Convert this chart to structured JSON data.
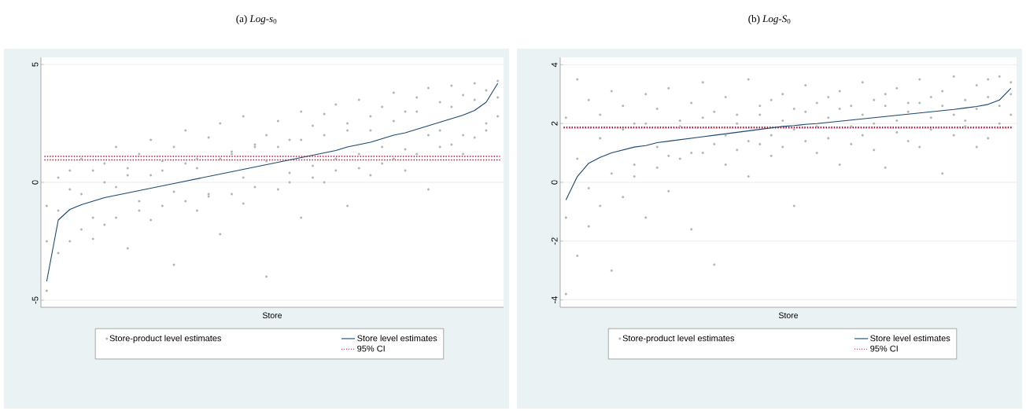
{
  "chart_data": [
    {
      "type": "scatter",
      "title": "(a) *Log-s*$_{0}$",
      "xlabel": "Store",
      "categories": [
        null,
        null,
        null,
        null,
        null,
        null,
        null,
        null,
        null,
        null,
        null,
        null,
        null,
        null,
        null,
        null,
        null,
        null,
        null,
        null,
        null,
        null,
        null,
        null,
        null,
        null,
        null,
        null,
        null,
        null,
        null,
        null,
        null,
        null,
        null,
        null,
        null,
        null,
        null,
        null
      ],
      "series": [
        {
          "name": "Store-product level estimates",
          "color": "#a9b8b0",
          "values": [
            -2.5,
            0.2,
            -0.3,
            1.0,
            0.5,
            0.8,
            1.5,
            0.3,
            1.2,
            1.8,
            0.9,
            1.5,
            2.2,
            0.6,
            1.9,
            2.5,
            1.2,
            2.8,
            1.5,
            2.0,
            2.6,
            1.8,
            3.0,
            2.4,
            2.9,
            3.3,
            2.2,
            3.5,
            2.8,
            3.2,
            3.8,
            3.0,
            3.6,
            4.0,
            3.4,
            4.1,
            3.7,
            4.2,
            3.9,
            4.3
          ]
        },
        {
          "color": "#a9b8b0",
          "values": [
            -4.6,
            -3.0,
            -2.5,
            -2.0,
            -2.4,
            -1.8,
            -1.5,
            -2.8,
            -1.2,
            -1.6,
            -1.0,
            -3.5,
            -0.8,
            -1.2,
            -0.6,
            -2.2,
            -0.5,
            -0.9,
            -0.2,
            -4.0,
            -0.3,
            0.0,
            -1.5,
            0.2,
            0.0,
            0.5,
            -1.0,
            0.6,
            0.3,
            0.8,
            1.0,
            0.5,
            1.2,
            -0.3,
            1.5,
            1.6,
            1.2,
            1.9,
            2.2,
            2.8
          ]
        },
        {
          "color": "#a9b8b0",
          "values": [
            -1.0,
            -1.2,
            0.5,
            -0.5,
            -1.5,
            0.0,
            -0.2,
            0.6,
            -0.8,
            0.3,
            0.5,
            -0.4,
            0.8,
            1.0,
            -0.5,
            1.0,
            1.3,
            0.2,
            1.6,
            0.9,
            1.5,
            0.4,
            1.8,
            0.7,
            2.0,
            1.0,
            2.5,
            1.2,
            2.2,
            1.5,
            2.6,
            1.4,
            3.0,
            2.0,
            2.2,
            3.2,
            2.0,
            3.5,
            2.5,
            3.6
          ]
        },
        {
          "name": "Store level estimates",
          "type": "line",
          "color": "#1a476f",
          "values": [
            -4.2,
            -1.6,
            -1.15,
            -0.95,
            -0.8,
            -0.65,
            -0.55,
            -0.45,
            -0.35,
            -0.25,
            -0.15,
            -0.05,
            0.05,
            0.15,
            0.25,
            0.35,
            0.45,
            0.55,
            0.65,
            0.75,
            0.85,
            0.95,
            1.05,
            1.15,
            1.25,
            1.35,
            1.5,
            1.6,
            1.7,
            1.85,
            2.0,
            2.1,
            2.25,
            2.4,
            2.55,
            2.7,
            2.85,
            3.05,
            3.4,
            4.2
          ]
        }
      ],
      "ref_lines": [
        {
          "axis": "y",
          "value": 1.1,
          "label": "95% CI",
          "color": "#c10534",
          "line_style": "dotted"
        },
        {
          "axis": "y",
          "value": 0.95,
          "label": null,
          "color": "#c10534",
          "line_style": "dotted"
        }
      ],
      "ylim": [
        -5.3,
        5.3
      ],
      "yticks": [
        -5,
        0,
        5
      ],
      "grid": "y",
      "legend": "bottom",
      "tick_labels": "y"
    },
    {
      "type": "scatter",
      "title": "(b) *Log-S*$_{0}$",
      "xlabel": "Store",
      "categories": [
        null,
        null,
        null,
        null,
        null,
        null,
        null,
        null,
        null,
        null,
        null,
        null,
        null,
        null,
        null,
        null,
        null,
        null,
        null,
        null,
        null,
        null,
        null,
        null,
        null,
        null,
        null,
        null,
        null,
        null,
        null,
        null,
        null,
        null,
        null,
        null,
        null,
        null,
        null,
        null
      ],
      "series": [
        {
          "name": "Store-product level estimates",
          "color": "#a9b8b0",
          "values": [
            2.2,
            3.5,
            2.8,
            2.3,
            3.1,
            2.6,
            2.0,
            3.0,
            2.5,
            3.2,
            2.1,
            2.7,
            3.4,
            2.4,
            2.9,
            2.3,
            3.5,
            2.6,
            2.8,
            3.0,
            2.5,
            3.3,
            2.7,
            2.9,
            3.1,
            2.6,
            3.4,
            2.8,
            3.0,
            3.2,
            2.7,
            3.5,
            2.9,
            3.1,
            3.6,
            2.8,
            3.3,
            3.5,
            3.6,
            3.4
          ]
        },
        {
          "color": "#a9b8b0",
          "values": [
            -3.8,
            -2.5,
            -1.5,
            -0.8,
            -3.0,
            -0.5,
            0.2,
            -1.2,
            0.5,
            -0.3,
            0.8,
            -1.6,
            1.0,
            -2.8,
            0.6,
            1.1,
            0.2,
            1.3,
            0.9,
            1.2,
            -0.8,
            1.4,
            1.0,
            1.5,
            0.6,
            1.3,
            1.6,
            1.1,
            0.5,
            1.7,
            1.4,
            1.2,
            1.8,
            0.3,
            1.6,
            1.9,
            1.2,
            1.5,
            2.0,
            2.3
          ]
        },
        {
          "color": "#a9b8b0",
          "values": [
            -1.2,
            0.8,
            -0.2,
            1.5,
            0.3,
            1.8,
            0.6,
            2.0,
            1.2,
            0.9,
            1.9,
            1.0,
            2.2,
            1.3,
            1.6,
            2.0,
            1.4,
            2.3,
            1.6,
            2.1,
            1.8,
            2.4,
            1.9,
            2.2,
            2.5,
            1.9,
            2.3,
            2.0,
            2.6,
            2.1,
            2.4,
            2.7,
            2.2,
            2.6,
            2.3,
            2.1,
            2.5,
            2.9,
            2.6,
            3.0
          ]
        },
        {
          "name": "Store level estimates",
          "type": "line",
          "color": "#1a476f",
          "values": [
            -0.6,
            0.2,
            0.65,
            0.85,
            1.0,
            1.1,
            1.2,
            1.25,
            1.35,
            1.4,
            1.45,
            1.5,
            1.55,
            1.6,
            1.65,
            1.7,
            1.75,
            1.8,
            1.85,
            1.9,
            1.93,
            1.97,
            2.0,
            2.04,
            2.08,
            2.12,
            2.16,
            2.2,
            2.24,
            2.28,
            2.32,
            2.36,
            2.4,
            2.44,
            2.48,
            2.53,
            2.58,
            2.65,
            2.8,
            3.2
          ]
        }
      ],
      "ref_lines": [
        {
          "axis": "y",
          "value": 1.88,
          "label": "95% CI",
          "color": "#c10534",
          "line_style": "dotted"
        },
        {
          "axis": "y",
          "value": 1.85,
          "label": null,
          "color": "#c10534",
          "line_style": "dotted"
        }
      ],
      "ylim": [
        -4.25,
        4.25
      ],
      "yticks": [
        -4,
        -2,
        0,
        2,
        4
      ],
      "grid": "y",
      "legend": "bottom",
      "tick_labels": "y"
    }
  ]
}
